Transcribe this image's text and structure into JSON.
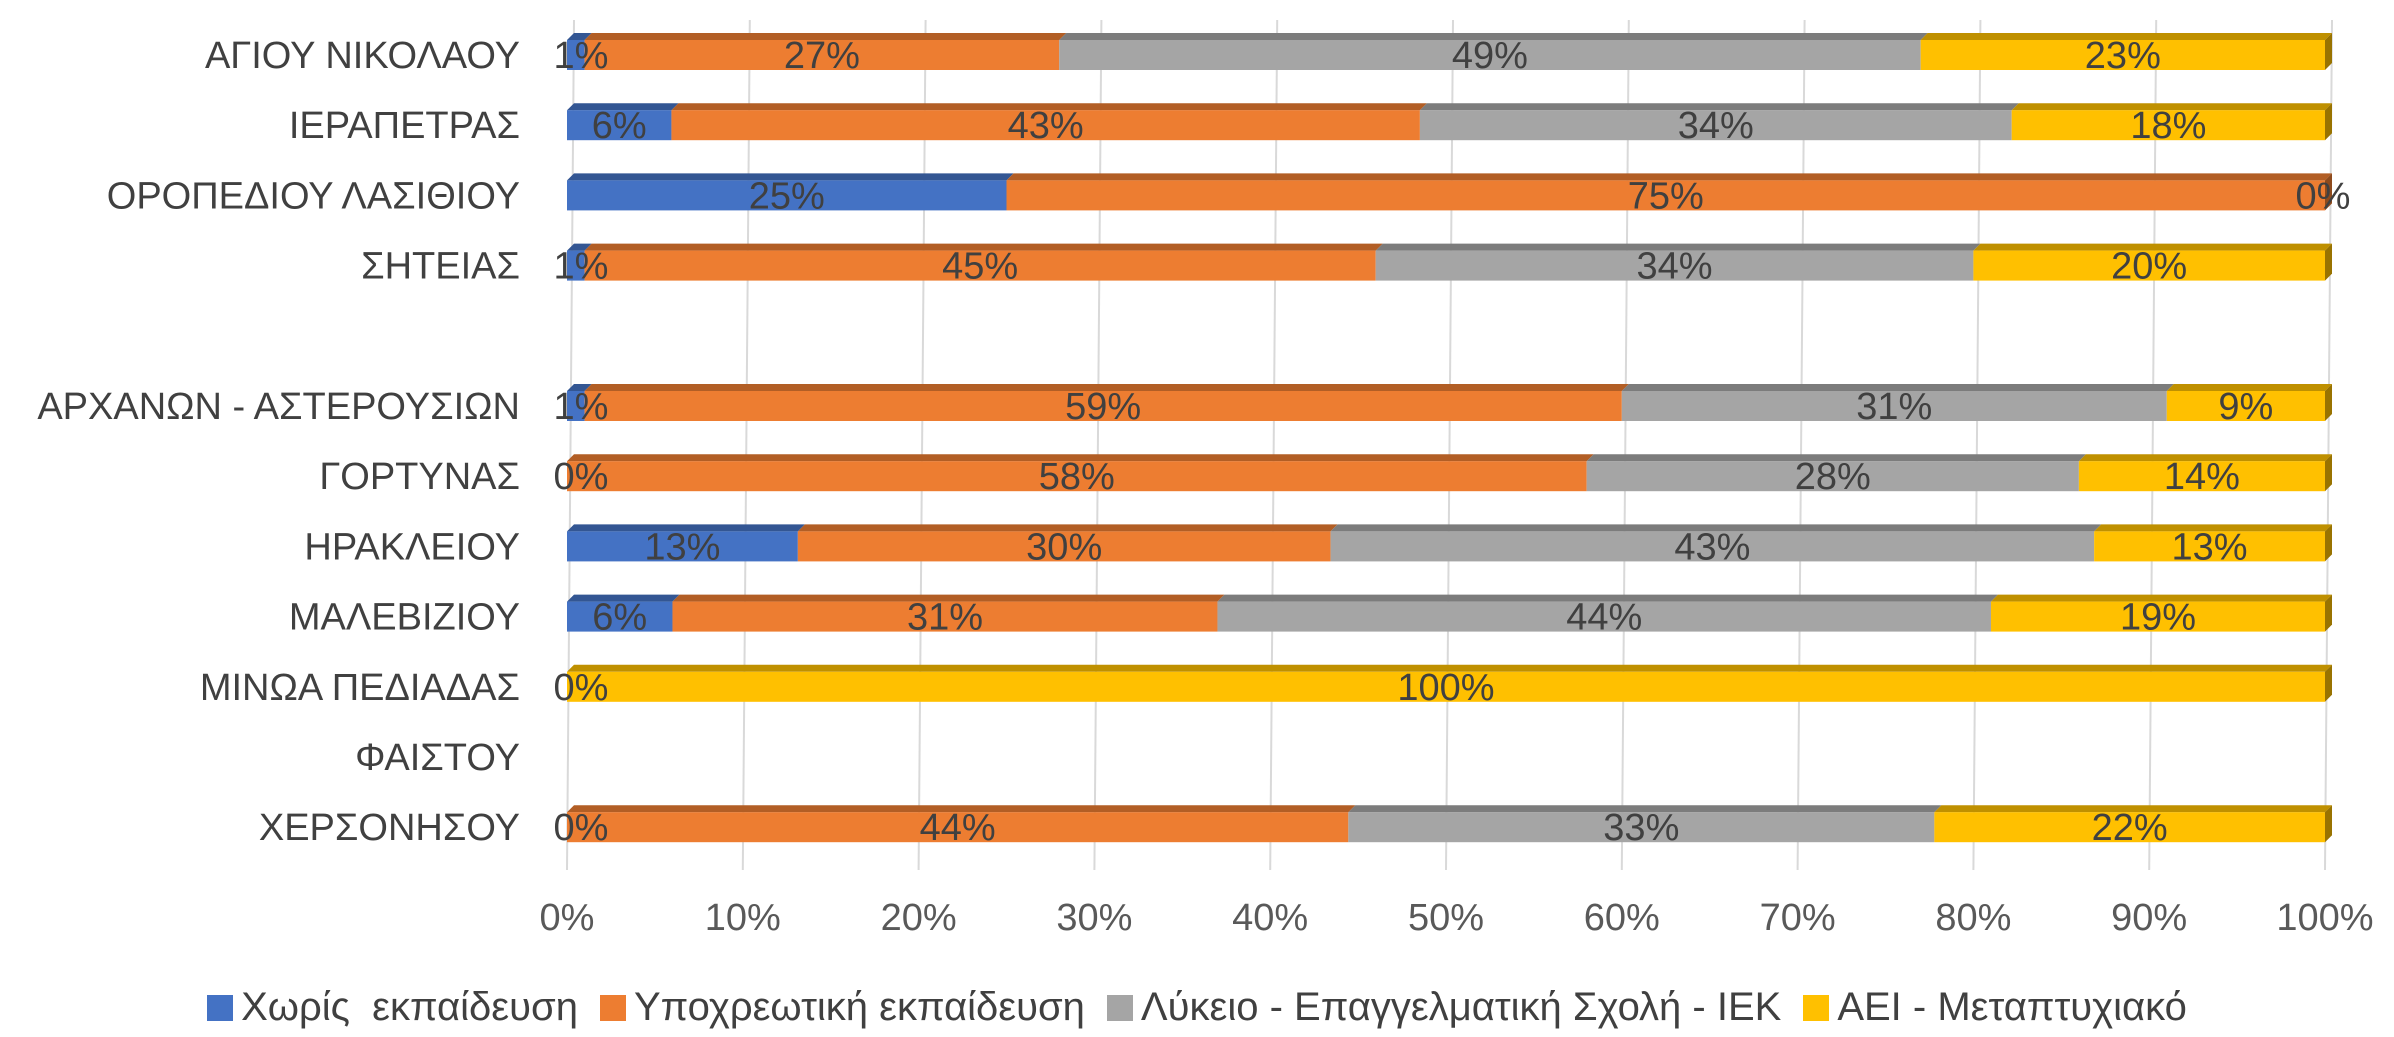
{
  "chart_data": {
    "type": "bar",
    "orientation": "horizontal",
    "stacked": "percent",
    "categories": [
      "ΑΓΙΟΥ ΝΙΚΟΛΑΟΥ",
      "ΙΕΡΑΠΕΤΡΑΣ",
      "ΟΡΟΠΕΔΙΟΥ ΛΑΣΙΘΙΟΥ",
      "ΣΗΤΕΙΑΣ",
      "",
      "ΑΡΧΑΝΩΝ - ΑΣΤΕΡΟΥΣΙΩΝ",
      "ΓΟΡΤΥΝΑΣ",
      "ΗΡΑΚΛΕΙΟΥ",
      "ΜΑΛΕΒΙΖΙΟΥ",
      "ΜΙΝΩΑ ΠΕΔΙΑΔΑΣ",
      "ΦΑΙΣΤΟΥ",
      "ΧΕΡΣΟΝΗΣΟΥ"
    ],
    "series": [
      {
        "name": "Χωρίς  εκπαίδευση",
        "color": "#4472C4",
        "values": [
          1,
          6,
          25,
          1,
          null,
          1,
          0,
          13,
          6,
          0,
          null,
          0
        ],
        "labels": [
          "1%",
          "6%",
          "25%",
          "1%",
          "",
          "1%",
          "0%",
          "13%",
          "6%",
          "0%",
          "",
          "0%"
        ]
      },
      {
        "name": "Υποχρεωτική εκπαίδευση",
        "color": "#ED7D31",
        "values": [
          27,
          43,
          75,
          45,
          null,
          59,
          58,
          30,
          31,
          0,
          null,
          44
        ],
        "labels": [
          "27%",
          "43%",
          "75%",
          "45%",
          "",
          "59%",
          "58%",
          "30%",
          "31%",
          "",
          "",
          "44%"
        ]
      },
      {
        "name": "Λύκειο - Επαγγελματική Σχολή - ΙΕΚ",
        "color": "#A5A5A5",
        "values": [
          49,
          34,
          0,
          34,
          null,
          31,
          28,
          43,
          44,
          0,
          null,
          33
        ],
        "labels": [
          "49%",
          "34%",
          "0%",
          "34%",
          "",
          "31%",
          "28%",
          "43%",
          "44%",
          "",
          "",
          "33%"
        ]
      },
      {
        "name": "ΑΕΙ - Μεταπτυχιακό",
        "color": "#FFC000",
        "values": [
          23,
          18,
          0,
          20,
          null,
          9,
          14,
          13,
          19,
          100,
          null,
          22
        ],
        "labels": [
          "23%",
          "18%",
          "",
          "20%",
          "",
          "9%",
          "14%",
          "13%",
          "19%",
          "100%",
          "",
          "22%"
        ]
      }
    ],
    "x_ticks": [
      "0%",
      "10%",
      "20%",
      "30%",
      "40%",
      "50%",
      "60%",
      "70%",
      "80%",
      "90%",
      "100%"
    ],
    "xlim": [
      0,
      100
    ],
    "grid": true,
    "legend_position": "bottom",
    "title": "",
    "xlabel": "",
    "ylabel": ""
  }
}
